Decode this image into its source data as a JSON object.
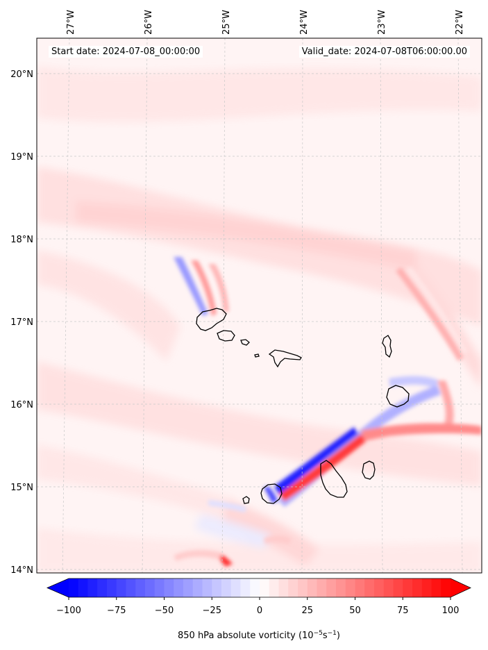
{
  "header": {
    "start_date": "Start date: 2024-07-08_00:00:00",
    "valid_date": "Valid_date: 2024-07-08T06:00:00.00"
  },
  "map": {
    "lon_ticks": [
      "27°W",
      "26°W",
      "25°W",
      "24°W",
      "23°W",
      "22°W"
    ],
    "lat_ticks": [
      "20°N",
      "19°N",
      "18°N",
      "17°N",
      "16°N",
      "15°N",
      "14°N"
    ],
    "grid": true
  },
  "colorbar": {
    "ticks": [
      "−100",
      "−75",
      "−50",
      "−25",
      "0",
      "25",
      "50",
      "75",
      "100"
    ],
    "label": "850 hPa absolute vorticity (10",
    "label_exp1": "−5",
    "label_mid": "s",
    "label_exp2": "−1",
    "label_end": ")",
    "range": [
      -100,
      100
    ],
    "step": 5,
    "colormap": "bwr",
    "extend": "both"
  },
  "colors": {
    "positive": "#ff0000",
    "negative": "#0000ff",
    "neutral": "#ffffff",
    "coastline": "#000000",
    "gridline": "#c8c8c8"
  }
}
